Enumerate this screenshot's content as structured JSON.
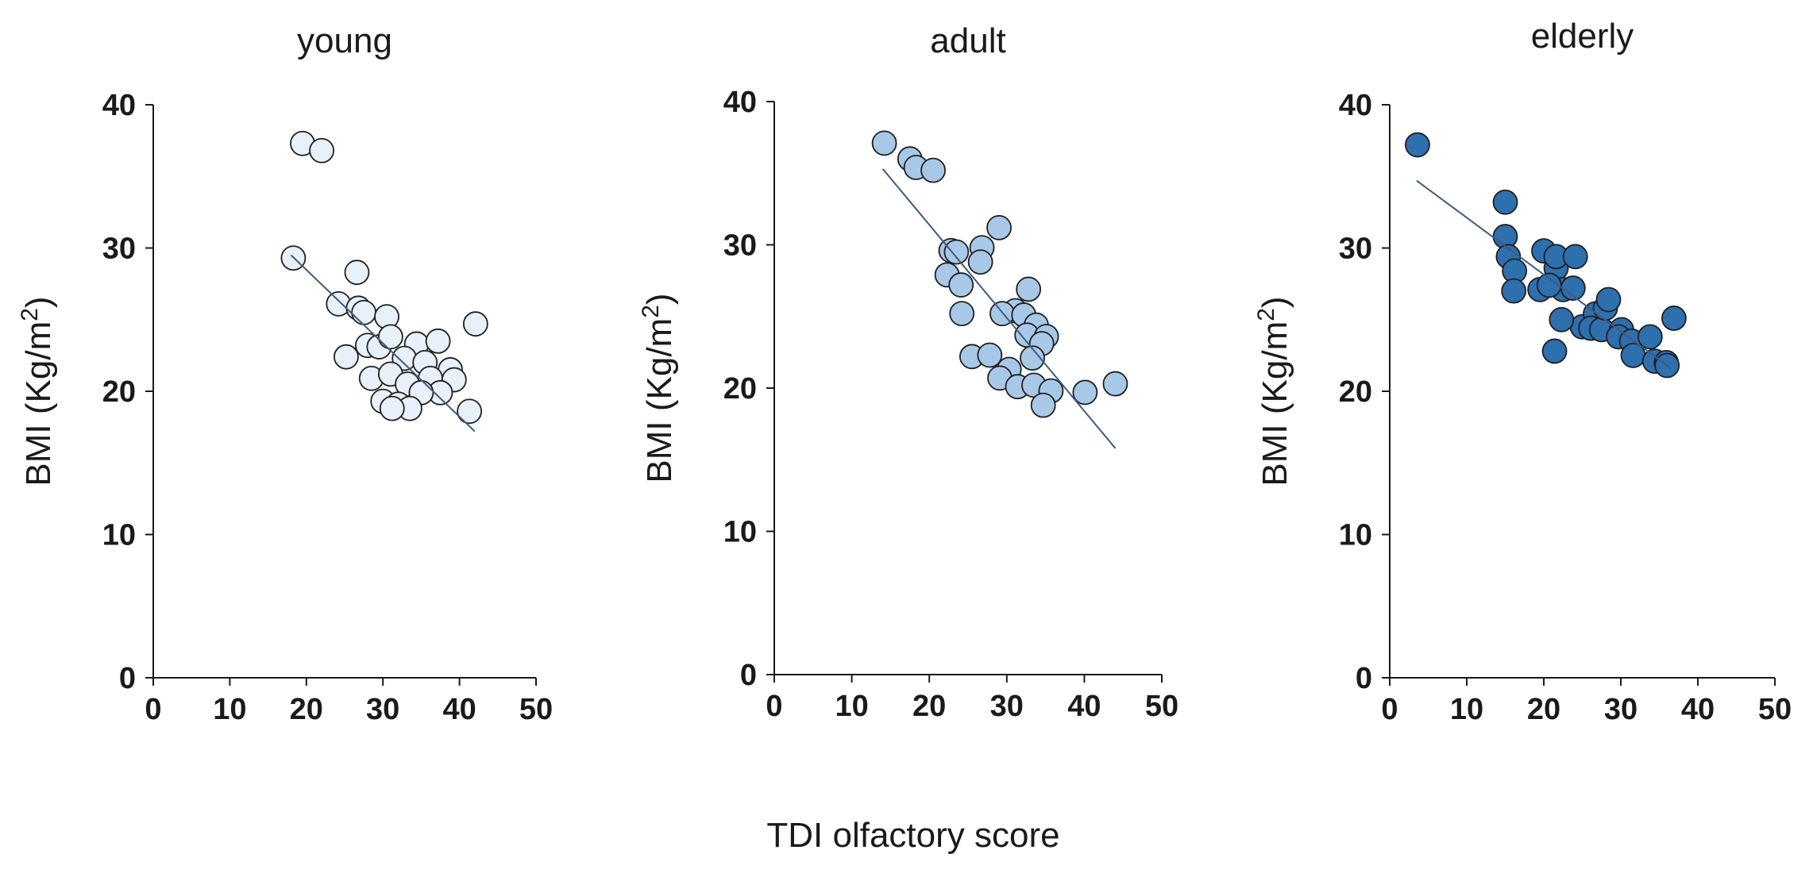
{
  "figure": {
    "shared_xlabel": "TDI olfactory score"
  },
  "chart_data": [
    {
      "type": "scatter",
      "title": "young",
      "ylabel": "BMI (Kg/m",
      "ylabel_sup": "2",
      "ylabel_close": ")",
      "xlim": [
        0,
        50
      ],
      "ylim": [
        0,
        40
      ],
      "xticks": [
        "0",
        "10",
        "20",
        "30",
        "40",
        "50"
      ],
      "yticks": [
        "0",
        "10",
        "20",
        "30",
        "40"
      ],
      "marker_color": "#e8f0f9",
      "trend": {
        "x": [
          18,
          42
        ],
        "y": [
          29.5,
          17.2
        ]
      },
      "points": [
        [
          19.5,
          37.3
        ],
        [
          22,
          36.8
        ],
        [
          18.3,
          29.3
        ],
        [
          26.6,
          28.3
        ],
        [
          24.2,
          26.1
        ],
        [
          26.8,
          25.8
        ],
        [
          27.5,
          25.5
        ],
        [
          30.5,
          25.2
        ],
        [
          25.2,
          22.4
        ],
        [
          28,
          23.2
        ],
        [
          29.5,
          23.1
        ],
        [
          31,
          23.8
        ],
        [
          34.4,
          23.3
        ],
        [
          37.2,
          23.5
        ],
        [
          32.8,
          22.3
        ],
        [
          35.5,
          22
        ],
        [
          38.8,
          21.5
        ],
        [
          42.1,
          24.7
        ],
        [
          28.5,
          20.9
        ],
        [
          31,
          21.2
        ],
        [
          33.2,
          20.5
        ],
        [
          36.2,
          20.9
        ],
        [
          39.3,
          20.8
        ],
        [
          37.5,
          19.9
        ],
        [
          35,
          19.9
        ],
        [
          30,
          19.3
        ],
        [
          32,
          19.1
        ],
        [
          33.5,
          18.8
        ],
        [
          31.2,
          18.8
        ],
        [
          41.3,
          18.6
        ]
      ]
    },
    {
      "type": "scatter",
      "title": "adult",
      "ylabel": "BMI (Kg/m",
      "ylabel_sup": "2",
      "ylabel_close": ")",
      "xlim": [
        0,
        50
      ],
      "ylim": [
        0,
        40
      ],
      "xticks": [
        "0",
        "10",
        "20",
        "30",
        "40",
        "50"
      ],
      "yticks": [
        "0",
        "10",
        "20",
        "30",
        "40"
      ],
      "marker_color": "#a8c8e8",
      "trend": {
        "x": [
          14,
          44
        ],
        "y": [
          35.3,
          15.8
        ]
      },
      "points": [
        [
          14.2,
          37.1
        ],
        [
          17.5,
          36
        ],
        [
          18.3,
          35.4
        ],
        [
          20.5,
          35.2
        ],
        [
          29,
          31.2
        ],
        [
          22.8,
          29.6
        ],
        [
          23.5,
          29.5
        ],
        [
          26.8,
          29.8
        ],
        [
          26.6,
          28.8
        ],
        [
          22.3,
          27.9
        ],
        [
          24.1,
          27.2
        ],
        [
          32.8,
          26.9
        ],
        [
          31.1,
          25.4
        ],
        [
          29.4,
          25.2
        ],
        [
          32.2,
          25.1
        ],
        [
          33.8,
          24.4
        ],
        [
          24.2,
          25.2
        ],
        [
          32.6,
          23.7
        ],
        [
          35.1,
          23.6
        ],
        [
          34.5,
          23.1
        ],
        [
          33.3,
          22.1
        ],
        [
          25.5,
          22.2
        ],
        [
          27.8,
          22.3
        ],
        [
          30.3,
          21.3
        ],
        [
          29.1,
          20.7
        ],
        [
          31.4,
          20.1
        ],
        [
          33.5,
          20.2
        ],
        [
          35.7,
          19.8
        ],
        [
          40.1,
          19.7
        ],
        [
          34.7,
          18.8
        ],
        [
          44,
          20.3
        ]
      ]
    },
    {
      "type": "scatter",
      "title": "elderly",
      "ylabel": "BMI (Kg/m",
      "ylabel_sup": "2",
      "ylabel_close": ")",
      "xlim": [
        0,
        50
      ],
      "ylim": [
        0,
        40
      ],
      "xticks": [
        "0",
        "10",
        "20",
        "30",
        "40",
        "50"
      ],
      "yticks": [
        "0",
        "10",
        "20",
        "30",
        "40"
      ],
      "marker_color": "#2e6fae",
      "trend": {
        "x": [
          3.5,
          36.5
        ],
        "y": [
          34.7,
          21.6
        ]
      },
      "points": [
        [
          3.6,
          37.2
        ],
        [
          15,
          33.2
        ],
        [
          15,
          30.8
        ],
        [
          15.4,
          29.4
        ],
        [
          16.2,
          28.4
        ],
        [
          16.1,
          27
        ],
        [
          19.5,
          27.1
        ],
        [
          20,
          29.8
        ],
        [
          21.6,
          28.6
        ],
        [
          21.6,
          29.4
        ],
        [
          24.1,
          29.4
        ],
        [
          22.5,
          27.1
        ],
        [
          23.8,
          27.2
        ],
        [
          20.7,
          27.4
        ],
        [
          25,
          24.5
        ],
        [
          22.3,
          25
        ],
        [
          26.7,
          25.4
        ],
        [
          26.1,
          24.4
        ],
        [
          27.5,
          24.3
        ],
        [
          28,
          25.8
        ],
        [
          28.4,
          26.4
        ],
        [
          30.1,
          24.3
        ],
        [
          29.7,
          23.8
        ],
        [
          31.4,
          23.5
        ],
        [
          33.8,
          23.8
        ],
        [
          31.6,
          22.5
        ],
        [
          21.4,
          22.8
        ],
        [
          34.4,
          22.1
        ],
        [
          35.9,
          22
        ],
        [
          36,
          21.8
        ],
        [
          36.9,
          25.1
        ]
      ]
    }
  ]
}
